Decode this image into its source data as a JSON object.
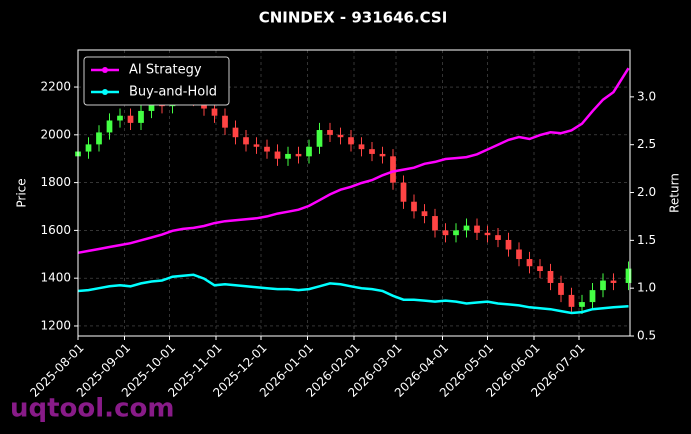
{
  "chart_data": {
    "type": "candlestick",
    "title": "CNINDEX - 931646.CSI",
    "ylabel": "Price",
    "y2label": "Return",
    "watermark": "uqtool.com",
    "x": [
      "2025-08-01",
      "2025-08-08",
      "2025-08-15",
      "2025-08-22",
      "2025-08-29",
      "2025-09-05",
      "2025-09-12",
      "2025-09-19",
      "2025-09-26",
      "2025-10-03",
      "2025-10-10",
      "2025-10-17",
      "2025-10-24",
      "2025-10-31",
      "2025-11-07",
      "2025-11-14",
      "2025-11-21",
      "2025-11-28",
      "2025-12-05",
      "2025-12-12",
      "2025-12-19",
      "2025-12-26",
      "2026-01-02",
      "2026-01-09",
      "2026-01-16",
      "2026-01-23",
      "2026-01-30",
      "2026-02-06",
      "2026-02-13",
      "2026-02-20",
      "2026-02-27",
      "2026-03-06",
      "2026-03-13",
      "2026-03-20",
      "2026-03-27",
      "2026-04-03",
      "2026-04-10",
      "2026-04-17",
      "2026-04-24",
      "2026-05-01",
      "2026-05-08",
      "2026-05-15",
      "2026-05-22",
      "2026-05-29",
      "2026-06-05",
      "2026-06-12",
      "2026-06-19",
      "2026-06-26",
      "2026-07-03",
      "2026-07-10",
      "2026-07-17",
      "2026-07-24",
      "2026-08-03"
    ],
    "open": [
      1910,
      1930,
      1960,
      2010,
      2060,
      2080,
      2050,
      2100,
      2140,
      2120,
      2180,
      2160,
      2150,
      2110,
      2080,
      2030,
      1990,
      1960,
      1950,
      1930,
      1900,
      1920,
      1910,
      1950,
      2020,
      2000,
      1990,
      1960,
      1940,
      1920,
      1910,
      1800,
      1720,
      1680,
      1660,
      1600,
      1580,
      1600,
      1620,
      1590,
      1580,
      1560,
      1520,
      1480,
      1450,
      1430,
      1380,
      1330,
      1280,
      1300,
      1350,
      1390,
      1380
    ],
    "high": [
      1960,
      1990,
      2040,
      2090,
      2110,
      2110,
      2130,
      2170,
      2170,
      2210,
      2210,
      2190,
      2180,
      2140,
      2110,
      2060,
      2020,
      1990,
      1980,
      1960,
      1950,
      1950,
      1980,
      2050,
      2050,
      2030,
      2020,
      1990,
      1970,
      1950,
      1940,
      1830,
      1750,
      1710,
      1690,
      1630,
      1630,
      1650,
      1650,
      1620,
      1610,
      1590,
      1550,
      1510,
      1480,
      1460,
      1410,
      1360,
      1330,
      1380,
      1420,
      1420,
      1470
    ],
    "low": [
      1880,
      1900,
      1930,
      1980,
      2030,
      2020,
      2020,
      2070,
      2090,
      2090,
      2130,
      2120,
      2080,
      2050,
      2000,
      1960,
      1930,
      1920,
      1900,
      1870,
      1870,
      1880,
      1880,
      1920,
      1970,
      1960,
      1930,
      1910,
      1890,
      1880,
      1770,
      1690,
      1650,
      1630,
      1570,
      1550,
      1550,
      1570,
      1560,
      1550,
      1530,
      1490,
      1450,
      1420,
      1400,
      1350,
      1300,
      1250,
      1250,
      1270,
      1320,
      1350,
      1350
    ],
    "close": [
      1930,
      1960,
      2010,
      2060,
      2080,
      2050,
      2100,
      2140,
      2120,
      2180,
      2160,
      2150,
      2110,
      2080,
      2030,
      1990,
      1960,
      1950,
      1930,
      1900,
      1920,
      1910,
      1950,
      2020,
      2000,
      1990,
      1960,
      1940,
      1920,
      1910,
      1800,
      1720,
      1680,
      1660,
      1600,
      1580,
      1600,
      1620,
      1590,
      1580,
      1560,
      1520,
      1480,
      1450,
      1430,
      1380,
      1330,
      1280,
      1300,
      1350,
      1390,
      1380,
      1440
    ],
    "up_color": "#44ff44",
    "down_color": "#ff4444",
    "series": [
      {
        "name": "AI Strategy",
        "color": "#ff00ff",
        "axis": "y2",
        "values": [
          1.37,
          1.39,
          1.41,
          1.43,
          1.45,
          1.47,
          1.5,
          1.53,
          1.56,
          1.6,
          1.62,
          1.63,
          1.65,
          1.68,
          1.7,
          1.71,
          1.72,
          1.73,
          1.75,
          1.78,
          1.8,
          1.82,
          1.86,
          1.92,
          1.98,
          2.03,
          2.06,
          2.1,
          2.13,
          2.18,
          2.22,
          2.24,
          2.26,
          2.3,
          2.32,
          2.35,
          2.36,
          2.37,
          2.4,
          2.45,
          2.5,
          2.55,
          2.58,
          2.56,
          2.6,
          2.63,
          2.62,
          2.65,
          2.72,
          2.85,
          2.97,
          3.05,
          3.3
        ]
      },
      {
        "name": "Buy-and-Hold",
        "color": "#00ffff",
        "axis": "y2",
        "values": [
          0.97,
          0.98,
          1.0,
          1.02,
          1.03,
          1.02,
          1.05,
          1.07,
          1.08,
          1.12,
          1.13,
          1.14,
          1.1,
          1.03,
          1.04,
          1.03,
          1.02,
          1.01,
          1.0,
          0.99,
          0.99,
          0.98,
          0.99,
          1.02,
          1.05,
          1.04,
          1.02,
          1.0,
          0.99,
          0.97,
          0.92,
          0.88,
          0.88,
          0.87,
          0.86,
          0.87,
          0.86,
          0.84,
          0.85,
          0.86,
          0.84,
          0.83,
          0.82,
          0.8,
          0.79,
          0.78,
          0.76,
          0.74,
          0.75,
          0.78,
          0.79,
          0.8,
          0.81
        ]
      }
    ],
    "xlim": [
      "2025-08-01",
      "2026-08-04"
    ],
    "xticks": [
      "2025-08-01",
      "2025-09-01",
      "2025-10-01",
      "2025-11-01",
      "2025-12-01",
      "2026-01-01",
      "2026-02-01",
      "2026-03-01",
      "2026-04-01",
      "2026-05-01",
      "2026-06-01",
      "2026-07-01"
    ],
    "ylim": [
      1158,
      2355
    ],
    "yticks": [
      1200,
      1400,
      1600,
      1800,
      2000,
      2200
    ],
    "y2lim": [
      0.5,
      3.49
    ],
    "y2ticks": [
      0.5,
      {
        "value": 1,
        "label": "1.0"
      },
      1.5,
      {
        "value": 2,
        "label": "2.0"
      },
      2.5,
      {
        "value": 3,
        "label": "3.0"
      }
    ],
    "grid": true,
    "legend": "upper left"
  }
}
